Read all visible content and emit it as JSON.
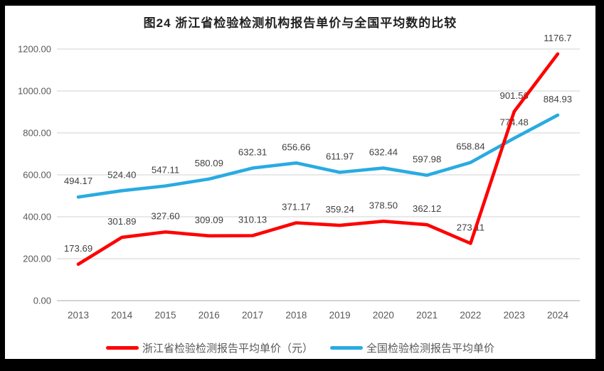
{
  "title": "图24  浙江省检验检测机构报告单价与全国平均数的比较",
  "colors": {
    "frame_background": "#000000",
    "canvas_background": "#FFFFFF",
    "gridline": "#D9D9D9",
    "axis_line": "#D3D3D3",
    "tick_label": "#595959",
    "data_label": "#404040",
    "title_text": "#212121"
  },
  "chart_data": {
    "type": "line",
    "title": "图24  浙江省检验检测机构报告单价与全国平均数的比较",
    "categories": [
      "2013",
      "2014",
      "2015",
      "2016",
      "2017",
      "2018",
      "2019",
      "2020",
      "2021",
      "2022",
      "2023",
      "2024"
    ],
    "series": [
      {
        "name": "浙江省检验检测报告平均单价（元）",
        "color": "#FE0000",
        "values": [
          173.69,
          301.89,
          327.6,
          309.09,
          310.13,
          371.17,
          359.24,
          378.5,
          362.12,
          273.11,
          901.56,
          1176.7
        ],
        "labels": [
          "173.69",
          "301.89",
          "327.60",
          "309.09",
          "310.13",
          "371.17",
          "359.24",
          "378.50",
          "362.12",
          "273.11",
          "901.56",
          "1176.7"
        ]
      },
      {
        "name": "全国检验检测报告平均单价",
        "color": "#29ABE2",
        "values": [
          494.17,
          524.4,
          547.11,
          580.09,
          632.31,
          656.66,
          611.97,
          632.44,
          597.98,
          658.84,
          774.48,
          884.93
        ],
        "labels": [
          "494.17",
          "524.40",
          "547.11",
          "580.09",
          "632.31",
          "656.66",
          "611.97",
          "632.44",
          "597.98",
          "658.84",
          "774.48",
          "884.93"
        ]
      }
    ],
    "xlabel": "",
    "ylabel": "",
    "ylim": [
      0,
      1200
    ],
    "y_tick_step": 200,
    "y_tick_labels": [
      "1200.00",
      "1000.00",
      "800.00",
      "600.00",
      "400.00",
      "200.00",
      "0.00"
    ],
    "grid": true,
    "legend_position": "bottom",
    "data_labels_shown": true
  }
}
